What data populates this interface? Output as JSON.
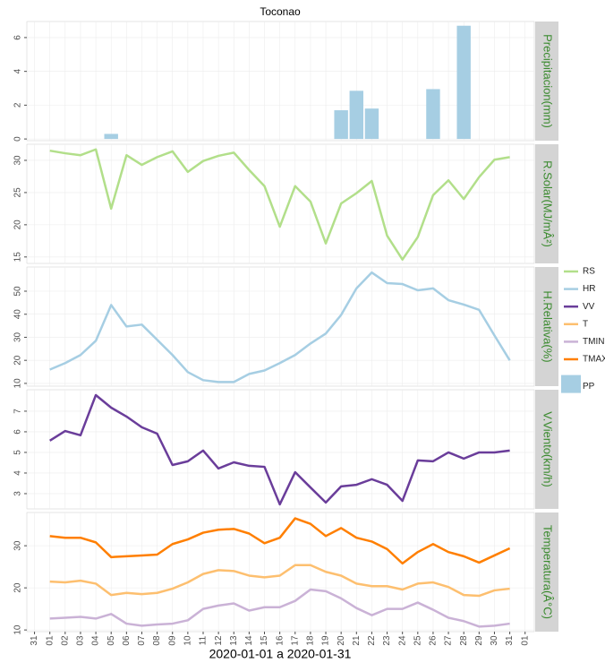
{
  "title": "Toconao",
  "x_axis": {
    "label": "2020-01-01 a 2020-01-31",
    "lim": [
      -0.5,
      32.6
    ],
    "ticks": [
      {
        "value": 0,
        "label": "31"
      },
      {
        "value": 1,
        "label": "01"
      },
      {
        "value": 2,
        "label": "02"
      },
      {
        "value": 3,
        "label": "03"
      },
      {
        "value": 4,
        "label": "04"
      },
      {
        "value": 5,
        "label": "05"
      },
      {
        "value": 6,
        "label": "06"
      },
      {
        "value": 7,
        "label": "07"
      },
      {
        "value": 8,
        "label": "08"
      },
      {
        "value": 9,
        "label": "09"
      },
      10,
      11,
      12,
      13,
      14,
      15,
      16,
      17,
      18,
      19,
      20,
      21,
      22,
      23,
      24,
      25,
      26,
      27,
      28,
      29,
      30,
      31,
      {
        "value": 32,
        "label": "01"
      }
    ]
  },
  "chart_data": [
    {
      "type": "bar",
      "strip": "Precipitacion(mm)",
      "x": [
        1,
        2,
        3,
        4,
        5,
        6,
        7,
        8,
        9,
        10,
        11,
        12,
        13,
        14,
        15,
        16,
        17,
        18,
        19,
        20,
        21,
        22,
        23,
        24,
        25,
        26,
        27,
        28,
        29,
        30,
        31
      ],
      "series": [
        {
          "name": "PP",
          "color": "#a6cee3",
          "values": [
            0,
            0,
            0,
            0,
            0.3,
            0,
            0,
            0,
            0,
            0,
            0,
            0,
            0,
            0,
            0,
            0,
            0,
            0,
            0,
            1.7,
            2.85,
            1.8,
            0,
            0,
            0,
            2.95,
            0,
            6.7,
            0,
            0,
            0
          ]
        }
      ],
      "ylim": [
        -0.1,
        6.95
      ],
      "yticks": [
        0,
        2,
        4,
        6
      ],
      "grid": true
    },
    {
      "type": "line",
      "strip": "R.Solar(MJ/mÂ²)",
      "x": [
        1,
        2,
        3,
        4,
        5,
        6,
        7,
        8,
        9,
        10,
        11,
        12,
        13,
        14,
        15,
        16,
        17,
        18,
        19,
        20,
        21,
        22,
        23,
        24,
        25,
        26,
        27,
        28,
        29,
        30,
        31
      ],
      "series": [
        {
          "name": "RS",
          "color": "#b2df8a",
          "values": [
            31.5,
            31.1,
            30.8,
            31.7,
            22.5,
            30.8,
            29.3,
            30.5,
            31.4,
            28.2,
            29.9,
            30.7,
            31.2,
            28.5,
            26.0,
            19.7,
            26.0,
            23.6,
            17.1,
            23.3,
            24.9,
            26.8,
            18.3,
            14.6,
            18.1,
            24.6,
            26.9,
            24.0,
            27.4,
            30.1,
            30.5
          ]
        }
      ],
      "ylim": [
        14.0,
        32.5
      ],
      "yticks": [
        15,
        20,
        25,
        30
      ],
      "grid": true
    },
    {
      "type": "line",
      "strip": "H.Relativa(%)",
      "x": [
        1,
        2,
        3,
        4,
        5,
        6,
        7,
        8,
        9,
        10,
        11,
        12,
        13,
        14,
        15,
        16,
        17,
        18,
        19,
        20,
        21,
        22,
        23,
        24,
        25,
        26,
        27,
        28,
        29,
        30,
        31
      ],
      "series": [
        {
          "name": "HR",
          "color": "#a6cee3",
          "values": [
            16.0,
            18.8,
            22.3,
            28.5,
            44.0,
            34.7,
            35.5,
            28.9,
            22.3,
            14.9,
            11.4,
            10.6,
            10.6,
            14.1,
            15.6,
            18.8,
            22.3,
            27.3,
            31.6,
            39.7,
            51.2,
            58.1,
            53.5,
            53.1,
            50.4,
            51.2,
            46.1,
            44.2,
            41.9,
            30.8,
            20.0
          ]
        }
      ],
      "ylim": [
        8.8,
        60.5
      ],
      "yticks": [
        10,
        20,
        30,
        40,
        50
      ],
      "grid": true
    },
    {
      "type": "line",
      "strip": "V.Viento(km/h)",
      "x": [
        1,
        2,
        3,
        4,
        5,
        6,
        7,
        8,
        9,
        10,
        11,
        12,
        13,
        14,
        15,
        16,
        17,
        18,
        19,
        20,
        21,
        22,
        23,
        24,
        25,
        26,
        27,
        28,
        29,
        30,
        31
      ],
      "series": [
        {
          "name": "VV",
          "color": "#6a3d9a",
          "values": [
            5.57,
            6.04,
            5.83,
            7.78,
            7.17,
            6.74,
            6.22,
            5.91,
            4.39,
            4.57,
            5.09,
            4.22,
            4.52,
            4.35,
            4.3,
            2.48,
            4.04,
            3.3,
            2.57,
            3.35,
            3.43,
            3.7,
            3.43,
            2.65,
            4.61,
            4.57,
            5.0,
            4.7,
            5.0,
            5.0,
            5.09
          ]
        }
      ],
      "ylim": [
        2.26,
        8.04
      ],
      "yticks": [
        3,
        4,
        5,
        6,
        7
      ],
      "grid": true
    },
    {
      "type": "line",
      "strip": "Temperatura(Â°C)",
      "x": [
        1,
        2,
        3,
        4,
        5,
        6,
        7,
        8,
        9,
        10,
        11,
        12,
        13,
        14,
        15,
        16,
        17,
        18,
        19,
        20,
        21,
        22,
        23,
        24,
        25,
        26,
        27,
        28,
        29,
        30,
        31
      ],
      "series": [
        {
          "name": "T",
          "color": "#fdbf6f",
          "values": [
            21.5,
            21.3,
            21.7,
            21.0,
            18.3,
            18.8,
            18.5,
            18.8,
            19.8,
            21.3,
            23.3,
            24.2,
            24.0,
            22.9,
            22.5,
            22.9,
            25.4,
            25.4,
            23.8,
            22.9,
            21.0,
            20.4,
            20.4,
            19.6,
            21.0,
            21.3,
            20.2,
            18.3,
            18.1,
            19.4,
            19.8
          ]
        },
        {
          "name": "TMIN",
          "color": "#cab2d6",
          "values": [
            12.7,
            12.9,
            13.1,
            12.7,
            13.8,
            11.5,
            11.0,
            11.3,
            11.5,
            12.3,
            15.0,
            15.8,
            16.3,
            14.6,
            15.4,
            15.4,
            16.9,
            19.6,
            19.2,
            17.5,
            15.2,
            13.5,
            15.0,
            15.0,
            16.5,
            14.8,
            12.9,
            12.1,
            10.8,
            11.0,
            11.5
          ]
        },
        {
          "name": "TMAX",
          "color": "#ff7f00",
          "values": [
            32.3,
            31.9,
            31.9,
            30.8,
            27.3,
            27.5,
            27.7,
            27.9,
            30.4,
            31.5,
            33.1,
            33.8,
            34.0,
            32.9,
            30.6,
            31.9,
            36.5,
            35.2,
            32.3,
            34.2,
            31.9,
            31.0,
            29.2,
            25.8,
            28.5,
            30.4,
            28.5,
            27.5,
            26.0,
            27.7,
            29.4
          ]
        }
      ],
      "ylim": [
        9.6,
        37.9
      ],
      "yticks": [
        10,
        20,
        30
      ],
      "grid": true
    }
  ]
}
